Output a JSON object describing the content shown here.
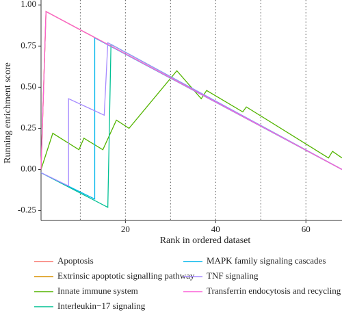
{
  "chart_data": {
    "type": "line",
    "xlabel": "Rank in ordered dataset",
    "ylabel": "Running enrichment score",
    "xlim": [
      1.3,
      68
    ],
    "ylim": [
      -0.31,
      1.03
    ],
    "xticks": [
      20,
      40,
      60
    ],
    "xgrid": [
      10,
      20,
      30,
      40,
      50,
      60
    ],
    "yticks": [
      {
        "value": 1,
        "label": "1.00"
      },
      {
        "value": 0.75,
        "label": "0.75"
      },
      {
        "value": 0.5,
        "label": "0.50"
      },
      {
        "value": 0.25,
        "label": "0.25"
      },
      {
        "value": 0,
        "label": "0.00"
      },
      {
        "value": -0.25,
        "label": "-0.25"
      }
    ],
    "series": [
      {
        "name": "Apoptosis",
        "color": "#F8766D",
        "x": [
          1.3,
          2.4,
          68
        ],
        "values": [
          0,
          0.96,
          0
        ]
      },
      {
        "name": "Extrinsic apoptotic signalling pathway",
        "color": "#D89000",
        "x": [
          1.3,
          2.4,
          68
        ],
        "values": [
          0,
          0.96,
          0
        ]
      },
      {
        "name": "Innate immune system",
        "color": "#53B400",
        "x": [
          1.3,
          3.9,
          9.7,
          10.8,
          15,
          18,
          20.8,
          31.4,
          36.8,
          38,
          46,
          46.8,
          65,
          65.9,
          68
        ],
        "values": [
          0,
          0.22,
          0.12,
          0.19,
          0.12,
          0.3,
          0.25,
          0.6,
          0.43,
          0.48,
          0.35,
          0.38,
          0.07,
          0.11,
          0.07
        ]
      },
      {
        "name": "Interleukin−17 signaling",
        "color": "#00C094",
        "x": [
          1.3,
          16.1,
          16.8,
          68
        ],
        "values": [
          -0.02,
          -0.23,
          0.76,
          0
        ]
      },
      {
        "name": "MAPK family signaling cascades",
        "color": "#00B6EB",
        "x": [
          1.3,
          13.2,
          13.2,
          68
        ],
        "values": [
          -0.02,
          -0.18,
          0.8,
          0
        ]
      },
      {
        "name": "TNF signaling",
        "color": "#A58AFF",
        "x": [
          1.3,
          7.4,
          7.4,
          15.3,
          16.1,
          68
        ],
        "values": [
          -0.02,
          -0.1,
          0.43,
          0.33,
          0.77,
          0
        ]
      },
      {
        "name": "Transferrin endocytosis and recycling",
        "color": "#FB61D7",
        "x": [
          1.3,
          2.4,
          68
        ],
        "values": [
          0,
          0.96,
          0
        ]
      }
    ]
  }
}
